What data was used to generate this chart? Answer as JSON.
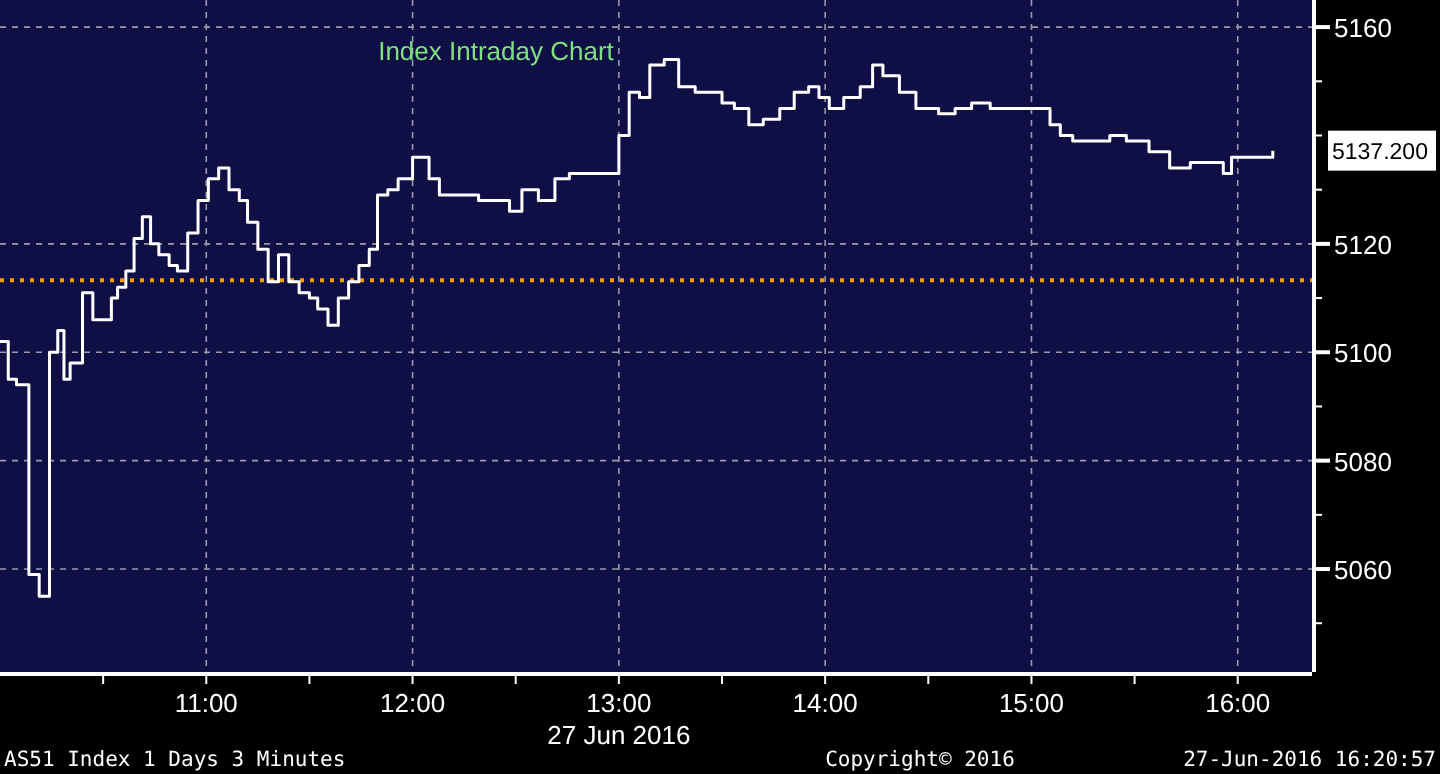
{
  "chart_data": {
    "type": "step",
    "title": "Index Intraday Chart",
    "xlabel": "27 Jun 2016",
    "annotations": [
      "5137.200",
      "AS51 Index 1 Days 3 Minutes",
      "Copyright© 2016",
      "27-Jun-2016 16:20:57"
    ],
    "x": [
      10.0,
      10.04,
      10.08,
      10.14,
      10.19,
      10.24,
      10.28,
      10.31,
      10.34,
      10.4,
      10.45,
      10.5,
      10.54,
      10.57,
      10.61,
      10.65,
      10.69,
      10.73,
      10.77,
      10.82,
      10.86,
      10.91,
      10.96,
      11.01,
      11.06,
      11.11,
      11.16,
      11.2,
      11.25,
      11.3,
      11.35,
      11.4,
      11.45,
      11.5,
      11.54,
      11.59,
      11.64,
      11.69,
      11.74,
      11.79,
      11.83,
      11.88,
      11.93,
      12.0,
      12.08,
      12.13,
      12.17,
      12.24,
      12.32,
      12.4,
      12.47,
      12.53,
      12.61,
      12.69,
      12.76,
      12.81,
      13.0,
      13.05,
      13.1,
      13.15,
      13.22,
      13.29,
      13.37,
      13.44,
      13.5,
      13.56,
      13.63,
      13.7,
      13.78,
      13.85,
      13.92,
      13.97,
      14.02,
      14.09,
      14.17,
      14.23,
      14.28,
      14.36,
      14.44,
      14.49,
      14.55,
      14.63,
      14.71,
      14.8,
      14.89,
      14.99,
      15.09,
      15.14,
      15.2,
      15.28,
      15.38,
      15.46,
      15.57,
      15.67,
      15.77,
      15.86,
      15.93,
      15.97,
      16.06,
      16.14,
      16.17
    ],
    "series": [
      {
        "color": "#ffffff",
        "values": [
          5102,
          5095,
          5094,
          5059,
          5055,
          5100,
          5104,
          5095,
          5098,
          5111,
          5106,
          5106,
          5110,
          5112,
          5115,
          5121,
          5125,
          5120,
          5118,
          5116,
          5115,
          5122,
          5128,
          5132,
          5134,
          5130,
          5128,
          5124,
          5119,
          5113,
          5118,
          5113,
          5111,
          5110,
          5108,
          5105,
          5110,
          5113,
          5116,
          5119,
          5129,
          5130,
          5132,
          5136,
          5132,
          5129,
          5129,
          5129,
          5128,
          5128,
          5126,
          5130,
          5128,
          5132,
          5133,
          5133,
          5140,
          5148,
          5147,
          5153,
          5154,
          5149,
          5148,
          5148,
          5146,
          5145,
          5142,
          5143,
          5145,
          5148,
          5149,
          5147,
          5145,
          5147,
          5149,
          5153,
          5151,
          5148,
          5145,
          5145,
          5144,
          5145,
          5146,
          5145,
          5145,
          5145,
          5142,
          5140,
          5139,
          5139,
          5140,
          5139,
          5137,
          5134,
          5135,
          5135,
          5133,
          5136,
          5136,
          5136,
          5137.2
        ]
      }
    ],
    "xlim": [
      10,
      16.36
    ],
    "ylim": [
      5041,
      5165
    ],
    "xticks": [
      {
        "value": 10.5,
        "label": null
      },
      {
        "value": 11,
        "label": "11:00"
      },
      {
        "value": 11.5,
        "label": null
      },
      {
        "value": 12,
        "label": "12:00"
      },
      {
        "value": 12.5,
        "label": null
      },
      {
        "value": 13,
        "label": "13:00"
      },
      {
        "value": 13.5,
        "label": null
      },
      {
        "value": 14,
        "label": "14:00"
      },
      {
        "value": 14.5,
        "label": null
      },
      {
        "value": 15,
        "label": "15:00"
      },
      {
        "value": 15.5,
        "label": null
      },
      {
        "value": 16,
        "label": "16:00"
      }
    ],
    "yticks": [
      {
        "value": 5050,
        "label": null
      },
      5060,
      {
        "value": 5070,
        "label": null
      },
      5080,
      {
        "value": 5090,
        "label": null
      },
      5100,
      {
        "value": 5110,
        "label": null
      },
      5120,
      {
        "value": 5130,
        "label": null
      },
      {
        "value": 5140,
        "label": null
      },
      {
        "value": 5150,
        "label": null
      },
      5160
    ],
    "grid": true,
    "line_style": "solid",
    "ref_lines": [
      {
        "axis": "y",
        "value": 5113.3,
        "label": null,
        "color": "#ff9900",
        "line_style": "dotted"
      }
    ]
  }
}
